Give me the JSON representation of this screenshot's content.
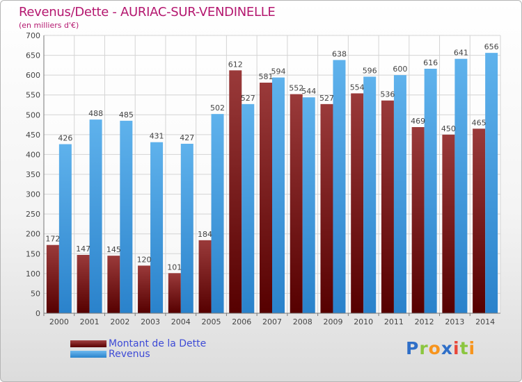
{
  "colors": {
    "title": "#b4176f",
    "dette": "#7a1d1d",
    "revenus": "#3a9ae0",
    "legend_text": "#3d4ad6"
  },
  "logo": {
    "text": "Proxiti",
    "letters": [
      "P",
      "r",
      "o",
      "x",
      "i",
      "t",
      "i"
    ]
  },
  "chart_data": {
    "type": "bar",
    "title": "Revenus/Dette - AURIAC-SUR-VENDINELLE",
    "subtitle": "(en milliers d'€)",
    "xlabel": "",
    "ylabel": "",
    "ylim": [
      0,
      700
    ],
    "yticks": [
      0,
      50,
      100,
      150,
      200,
      250,
      300,
      350,
      400,
      450,
      500,
      550,
      600,
      650,
      700
    ],
    "grid": true,
    "legend_position": "bottom-left",
    "categories": [
      "2000",
      "2001",
      "2002",
      "2003",
      "2004",
      "2005",
      "2006",
      "2007",
      "2008",
      "2009",
      "2010",
      "2011",
      "2012",
      "2013",
      "2014"
    ],
    "series": [
      {
        "name": "Montant de la Dette",
        "values": [
          172,
          147,
          145,
          120,
          101,
          184,
          612,
          581,
          552,
          527,
          554,
          536,
          469,
          450,
          465
        ]
      },
      {
        "name": "Revenus",
        "values": [
          426,
          488,
          485,
          431,
          427,
          502,
          527,
          594,
          544,
          638,
          596,
          600,
          616,
          641,
          656
        ]
      }
    ]
  }
}
